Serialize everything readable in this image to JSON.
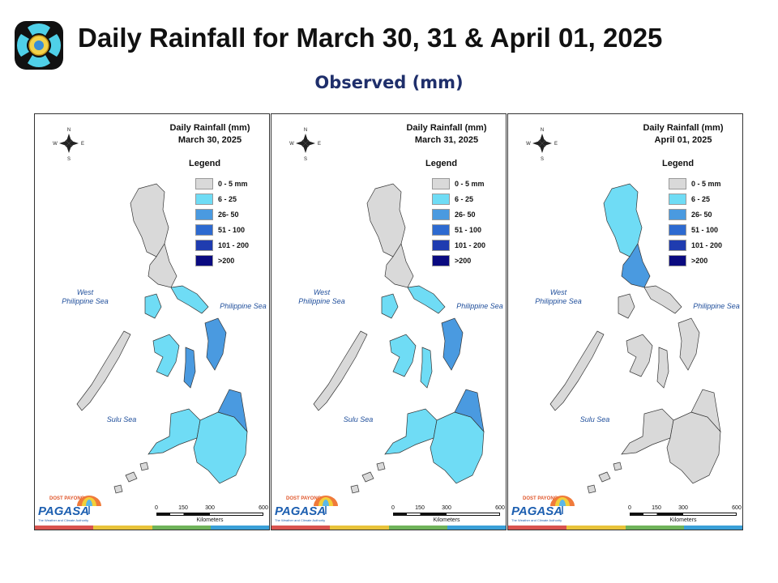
{
  "header": {
    "title": "Daily Rainfall for March 30, 31 & April 01, 2025",
    "subtitle": "Observed (mm)"
  },
  "legend_title": "Legend",
  "legend": [
    {
      "label": "0 - 5 mm",
      "color": "#d9d9d9"
    },
    {
      "label": "6 - 25",
      "color": "#6fdcf5"
    },
    {
      "label": "26- 50",
      "color": "#4a9ae0"
    },
    {
      "label": "51 - 100",
      "color": "#2d6ad0"
    },
    {
      "label": "101 - 200",
      "color": "#1f3cb0"
    },
    {
      "label": ">200",
      "color": "#0a0a80"
    }
  ],
  "seas": {
    "west": "West\nPhilippine Sea",
    "east": "Philippine Sea",
    "south": "Sulu Sea"
  },
  "scale": {
    "ticks": [
      "0",
      "150",
      "300",
      "600"
    ],
    "unit": "Kilometers"
  },
  "branding": {
    "logo_text": "PAGASA",
    "small_text": "DOST PAYONG",
    "tagline": "The Weather and Climate Authority"
  },
  "stripe_colors": [
    "#d9534f",
    "#e8c33a",
    "#6fb35a",
    "#3aa0d8"
  ],
  "panels": [
    {
      "title_line1": "Daily Rainfall (mm)",
      "title_line2": "March 30, 2025",
      "rain": {
        "luzon_north": "#d9d9d9",
        "luzon_central": "#d9d9d9",
        "bicol": "#6fdcf5",
        "samar_leyte": "#4a9ae0",
        "panay_negros": "#6fdcf5",
        "cebu_bohol": "#4a9ae0",
        "palawan": "#d9d9d9",
        "mindanao_west": "#6fdcf5",
        "mindanao_east": "#6fdcf5",
        "mindanao_ne": "#4a9ae0"
      }
    },
    {
      "title_line1": "Daily Rainfall (mm)",
      "title_line2": "March 31, 2025",
      "rain": {
        "luzon_north": "#d9d9d9",
        "luzon_central": "#d9d9d9",
        "bicol": "#6fdcf5",
        "samar_leyte": "#4a9ae0",
        "panay_negros": "#6fdcf5",
        "cebu_bohol": "#6fdcf5",
        "palawan": "#d9d9d9",
        "mindanao_west": "#6fdcf5",
        "mindanao_east": "#6fdcf5",
        "mindanao_ne": "#4a9ae0"
      }
    },
    {
      "title_line1": "Daily Rainfall (mm)",
      "title_line2": "April 01, 2025",
      "rain": {
        "luzon_north": "#6fdcf5",
        "luzon_central": "#4a9ae0",
        "bicol": "#d9d9d9",
        "samar_leyte": "#d9d9d9",
        "panay_negros": "#d9d9d9",
        "cebu_bohol": "#d9d9d9",
        "palawan": "#d9d9d9",
        "mindanao_west": "#d9d9d9",
        "mindanao_east": "#d9d9d9",
        "mindanao_ne": "#d9d9d9"
      }
    }
  ]
}
